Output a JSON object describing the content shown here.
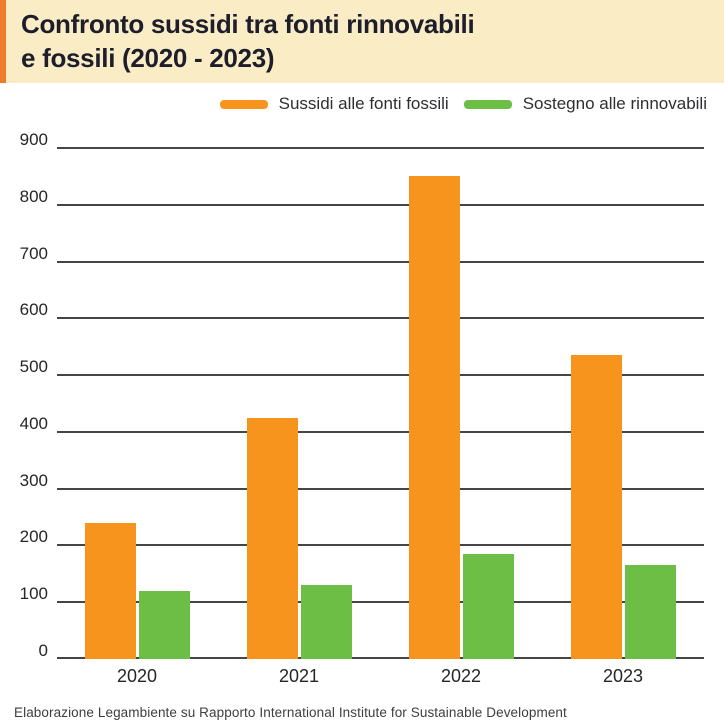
{
  "header": {
    "title_line1": "Confronto sussidi tra fonti rinnovabili",
    "title_line2": "e fossili (2020 - 2023)",
    "background_color": "#FAEDC5",
    "accent_color": "#EE7D2B"
  },
  "legend": {
    "items": [
      {
        "label": "Sussidi alle fonti fossili",
        "color": "#F7941D"
      },
      {
        "label": "Sostegno alle rinnovabili",
        "color": "#6CBE45"
      }
    ]
  },
  "chart_data": {
    "type": "bar",
    "title": "Confronto sussidi tra fonti rinnovabili e fossili (2020 - 2023)",
    "categories": [
      "2020",
      "2021",
      "2022",
      "2023"
    ],
    "series": [
      {
        "name": "Sussidi alle fonti fossili",
        "color": "#F7941D",
        "values": [
          240,
          425,
          850,
          535
        ]
      },
      {
        "name": "Sostegno alle rinnovabili",
        "color": "#6CBE45",
        "values": [
          120,
          130,
          185,
          165
        ]
      }
    ],
    "xlabel": "",
    "ylabel": "",
    "ylim": [
      0,
      900
    ],
    "ytick_step": 100,
    "grid": true,
    "gridline_color": "#454545",
    "legend_position": "top-right"
  },
  "footer": {
    "source": "Elaborazione Legambiente su Rapporto International Institute for Sustainable Development"
  }
}
